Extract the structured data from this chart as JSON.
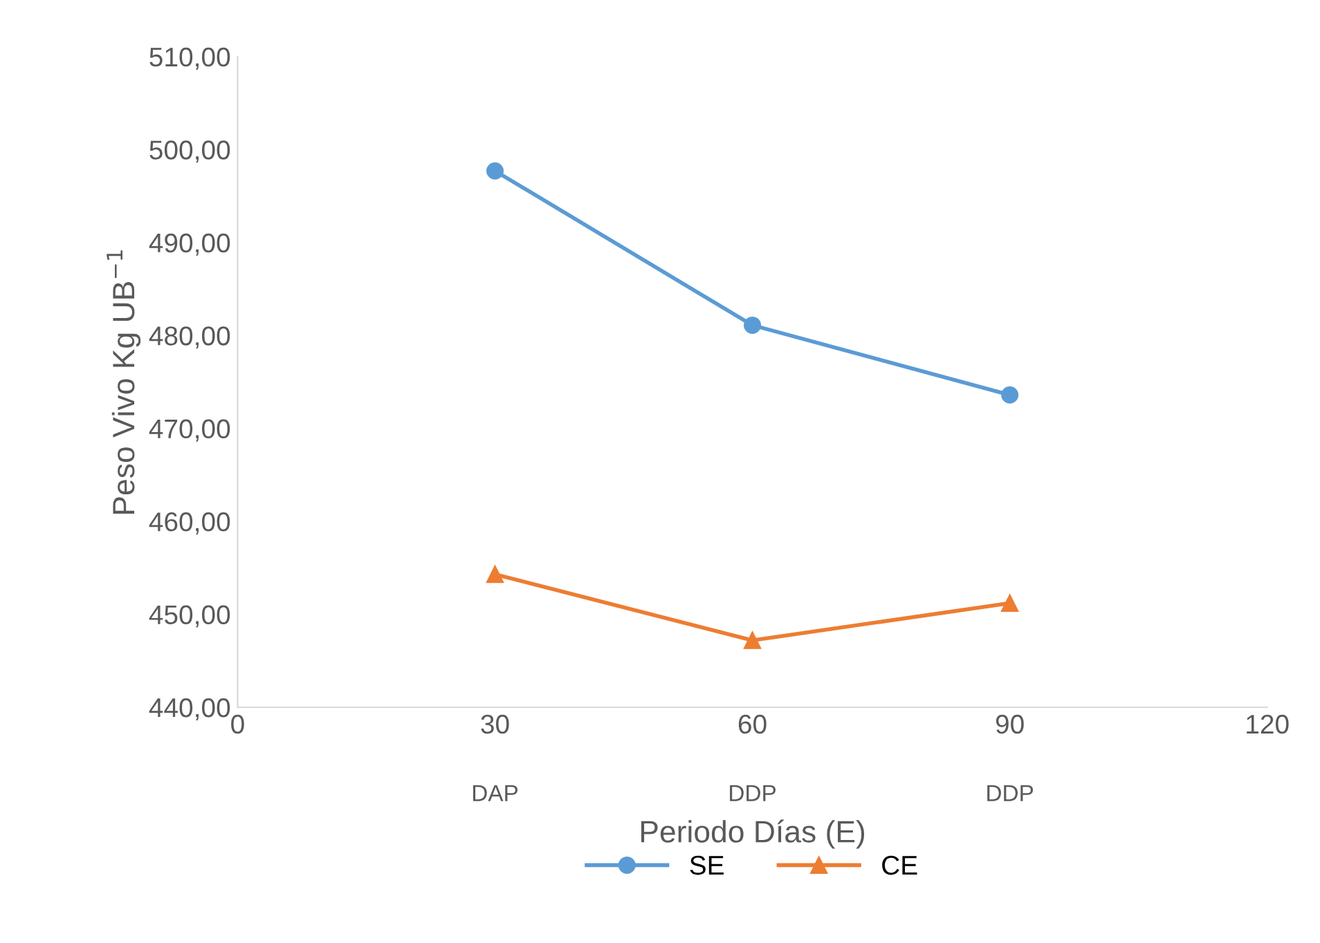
{
  "chart_data": {
    "type": "line",
    "xlabel": "Periodo Días (E)",
    "ylabel": "Peso Vivo Kg UB$^{−1}$",
    "x": [
      30,
      60,
      90
    ],
    "series": [
      {
        "name": "SE",
        "color": "#5b9bd5",
        "marker": "circle",
        "values": [
          497.7,
          481.1,
          473.6
        ]
      },
      {
        "name": "CE",
        "color": "#ed7d31",
        "marker": "triangle",
        "values": [
          454.3,
          447.2,
          451.2
        ]
      }
    ],
    "xlim": [
      0,
      120
    ],
    "xticks": [
      0,
      30,
      60,
      90,
      120
    ],
    "annotations": [
      "DAP",
      "DDP",
      "DDP"
    ],
    "ylim": [
      440,
      510
    ],
    "yticks": [
      {
        "value": 440,
        "label": "440,00"
      },
      {
        "value": 450,
        "label": "450,00"
      },
      {
        "value": 460,
        "label": "460,00"
      },
      {
        "value": 470,
        "label": "470,00"
      },
      {
        "value": 480,
        "label": "480,00"
      },
      {
        "value": 490,
        "label": "490,00"
      },
      {
        "value": 500,
        "label": "500,00"
      },
      {
        "value": 510,
        "label": "510,00"
      }
    ],
    "grid": false,
    "legend": "bottom",
    "line_style": "solid"
  }
}
